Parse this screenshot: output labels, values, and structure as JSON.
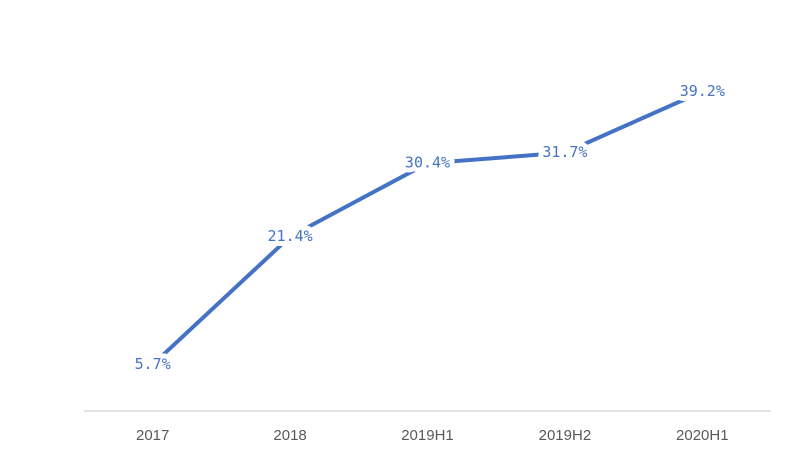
{
  "chart_data": {
    "type": "line",
    "categories": [
      "2017",
      "2018",
      "2019H1",
      "2019H2",
      "2020H1"
    ],
    "series": [
      {
        "values": [
          5.7,
          21.4,
          30.4,
          31.7,
          39.2
        ],
        "value_labels": [
          "5.7%",
          "21.4%",
          "30.4%",
          "31.7%",
          "39.2%"
        ],
        "color": "#4472c4"
      }
    ]
  }
}
